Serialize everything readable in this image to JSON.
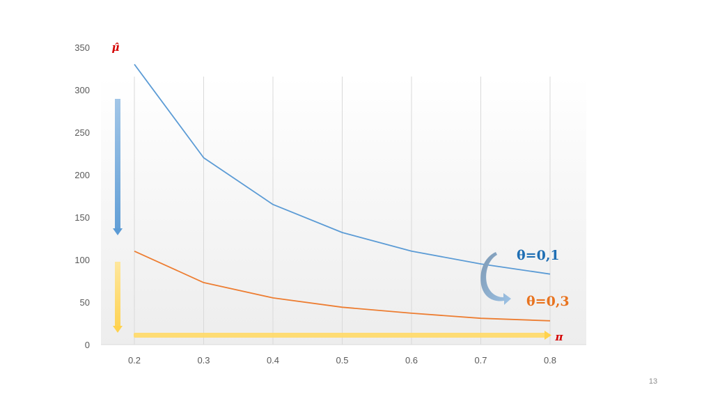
{
  "slide": {
    "page_number": "13"
  },
  "colors": {
    "series_1": "#5b9bd5",
    "series_2": "#ed7d31",
    "label_1": "#1f6fb4",
    "label_2": "#e8731f",
    "axis_symbol": "#d40000",
    "tick_text": "#595959",
    "gridline": "#d9d9d9",
    "arrow_blue": "#9dc3e6",
    "arrow_yellow": "#ffd966",
    "curved_arrow": "#7f9fbf"
  },
  "chart_data": {
    "type": "line",
    "x": [
      0.2,
      0.3,
      0.4,
      0.5,
      0.6,
      0.7,
      0.8
    ],
    "x_tick_labels": [
      "0.2",
      "0.3",
      "0.4",
      "0.5",
      "0.6",
      "0.7",
      "0.8"
    ],
    "y_ticks": [
      0,
      50,
      100,
      150,
      200,
      250,
      300,
      350
    ],
    "ylim": [
      0,
      350
    ],
    "xlabel": "π",
    "ylabel": "μ̂",
    "grid": "vertical",
    "series": [
      {
        "name": "θ=0,1",
        "values": [
          330,
          220,
          165,
          132,
          110,
          95,
          83
        ]
      },
      {
        "name": "θ=0,3",
        "values": [
          110,
          73,
          55,
          44,
          37,
          31,
          28
        ]
      }
    ],
    "annotations": [
      {
        "type": "arrow",
        "direction": "down",
        "color": "blue",
        "meaning": "decreasing μ̂"
      },
      {
        "type": "arrow",
        "direction": "down",
        "color": "yellow"
      },
      {
        "type": "arrow",
        "direction": "right",
        "color": "yellow",
        "meaning": "increasing π"
      },
      {
        "type": "curved-arrow",
        "from": "θ=0,1",
        "to": "θ=0,3"
      }
    ]
  }
}
